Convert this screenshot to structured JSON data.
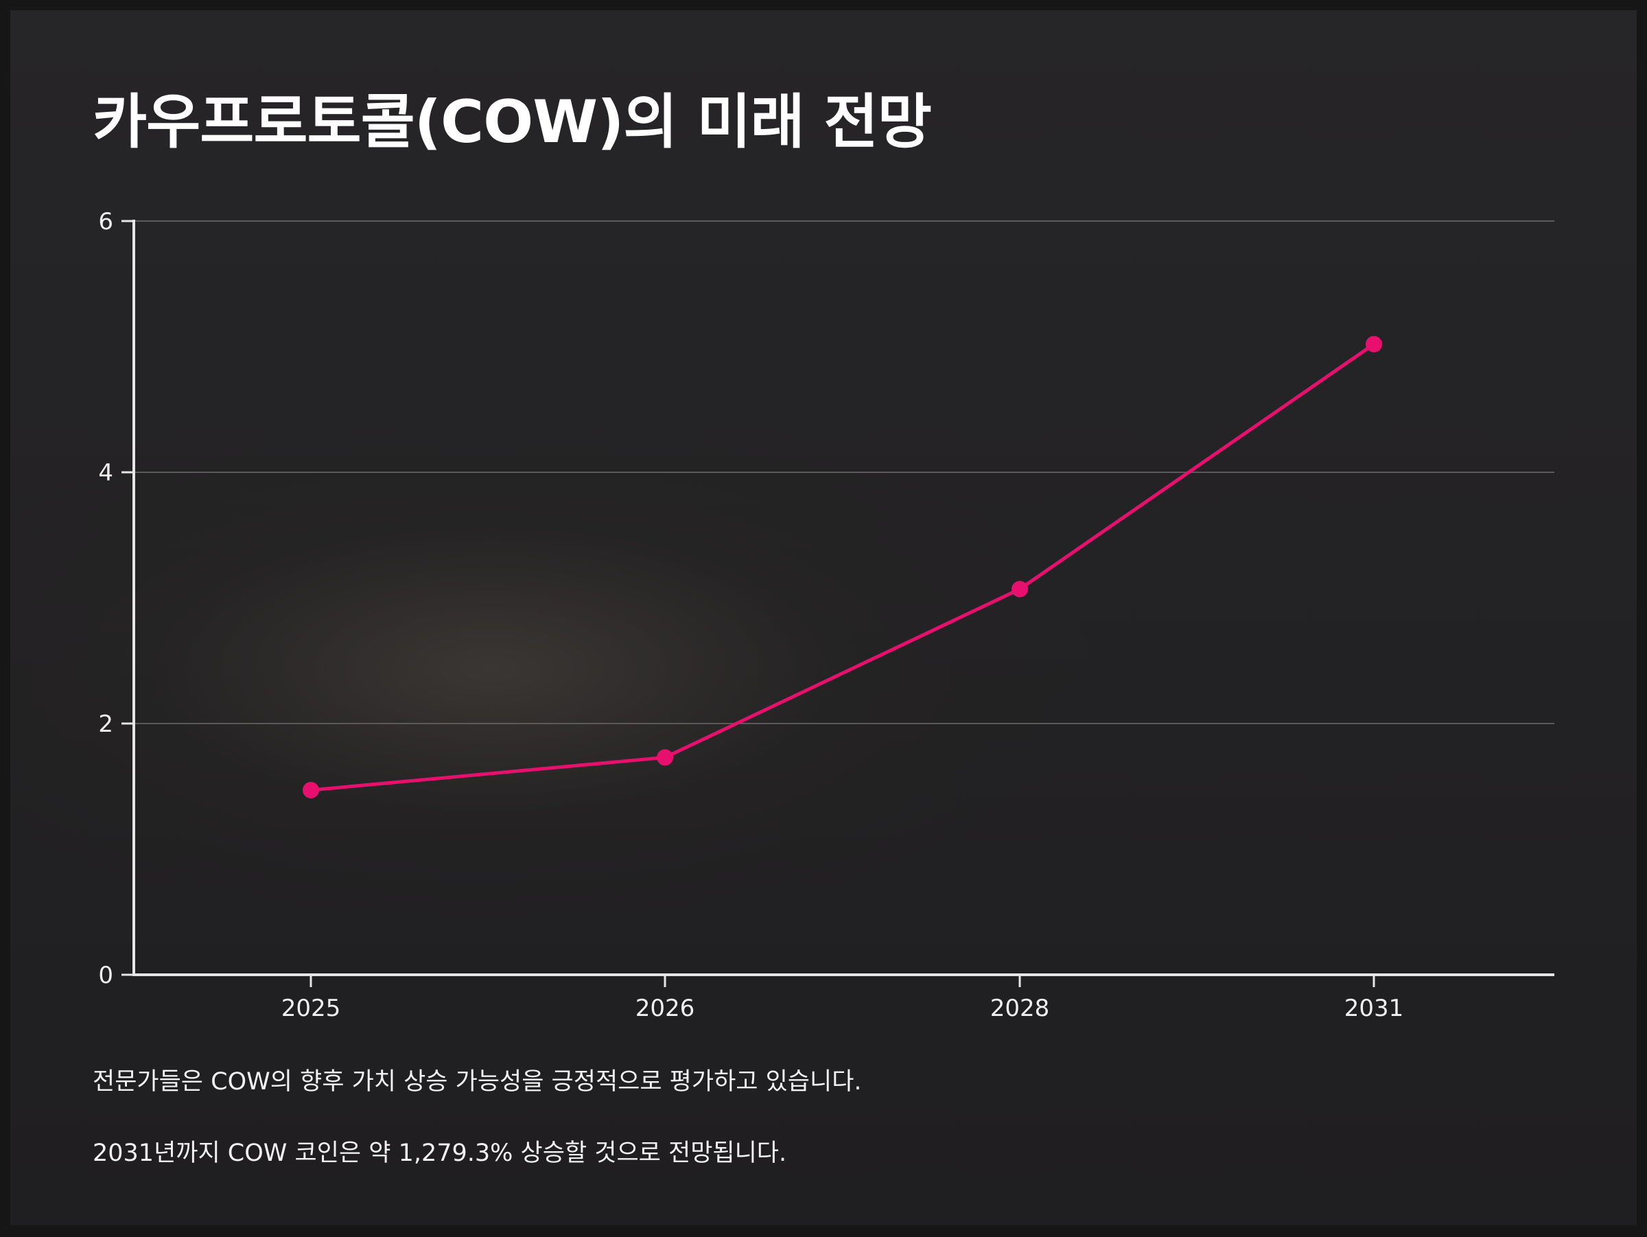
{
  "title": "카우프로토콜(COW)의 미래 전망",
  "chart_data": {
    "type": "line",
    "title": "",
    "xlabel": "",
    "ylabel": "",
    "categories": [
      "2025",
      "2026",
      "2028",
      "2031"
    ],
    "series": [
      {
        "name": "",
        "values": [
          1.47,
          1.73,
          3.07,
          5.02
        ]
      }
    ],
    "ylim": [
      0,
      6
    ],
    "yticks": [
      0,
      2,
      4,
      6
    ],
    "grid": true,
    "legend": "none",
    "line_color": "#e8106f"
  },
  "notes": [
    "전문가들은 COW의 향후 가치 상승 가능성을 긍정적으로 평가하고 있습니다.",
    "2031년까지 COW 코인은 약 1,279.3% 상승할 것으로 전망됩니다."
  ],
  "colors": {
    "background": "#232224",
    "text": "#ffffff",
    "grid": "#5a5a5a",
    "axis": "#e6e6e6",
    "accent": "#e8106f"
  }
}
